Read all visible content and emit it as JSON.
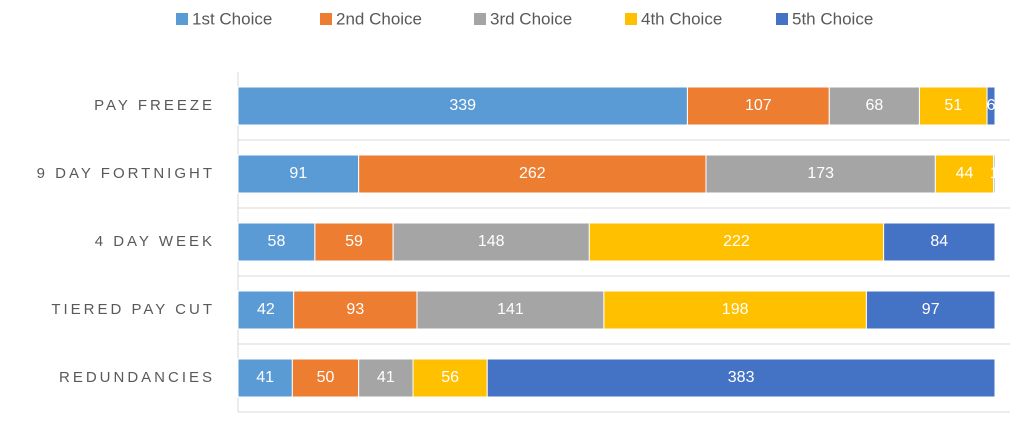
{
  "chart_data": {
    "type": "stacked_bar_horizontal",
    "categories": [
      "PAY FREEZE",
      "9 DAY FORTNIGHT",
      "4 DAY WEEK",
      "TIERED PAY CUT",
      "REDUNDANCIES"
    ],
    "series": [
      {
        "name": "1st Choice",
        "color": "#5b9bd5",
        "values": [
          339,
          91,
          58,
          42,
          41
        ]
      },
      {
        "name": "2nd Choice",
        "color": "#ed7d31",
        "values": [
          107,
          262,
          59,
          93,
          50
        ]
      },
      {
        "name": "3rd Choice",
        "color": "#a5a5a5",
        "values": [
          68,
          173,
          148,
          141,
          41
        ]
      },
      {
        "name": "4th Choice",
        "color": "#ffc000",
        "values": [
          51,
          44,
          222,
          198,
          56
        ]
      },
      {
        "name": "5th Choice",
        "color": "#4472c4",
        "values": [
          6,
          1,
          84,
          97,
          383
        ]
      }
    ],
    "xlim": [
      0,
      571
    ],
    "legend": "top"
  }
}
